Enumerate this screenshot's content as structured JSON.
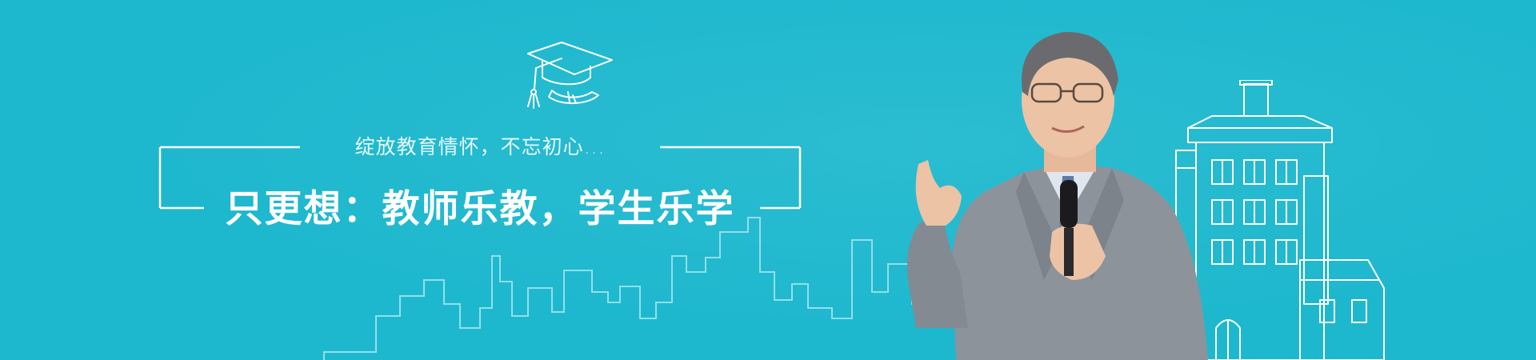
{
  "banner": {
    "subtitle": "绽放教育情怀，不忘初心...",
    "headline": "只更想：教师乐教，学生乐学"
  },
  "icons": {
    "cap": "graduation-cap-icon",
    "skyline": "city-skyline-line-art",
    "house": "house-line-art"
  },
  "colors": {
    "background": "#1eb8ce",
    "text": "#ffffff",
    "suit": "#8d939b"
  }
}
